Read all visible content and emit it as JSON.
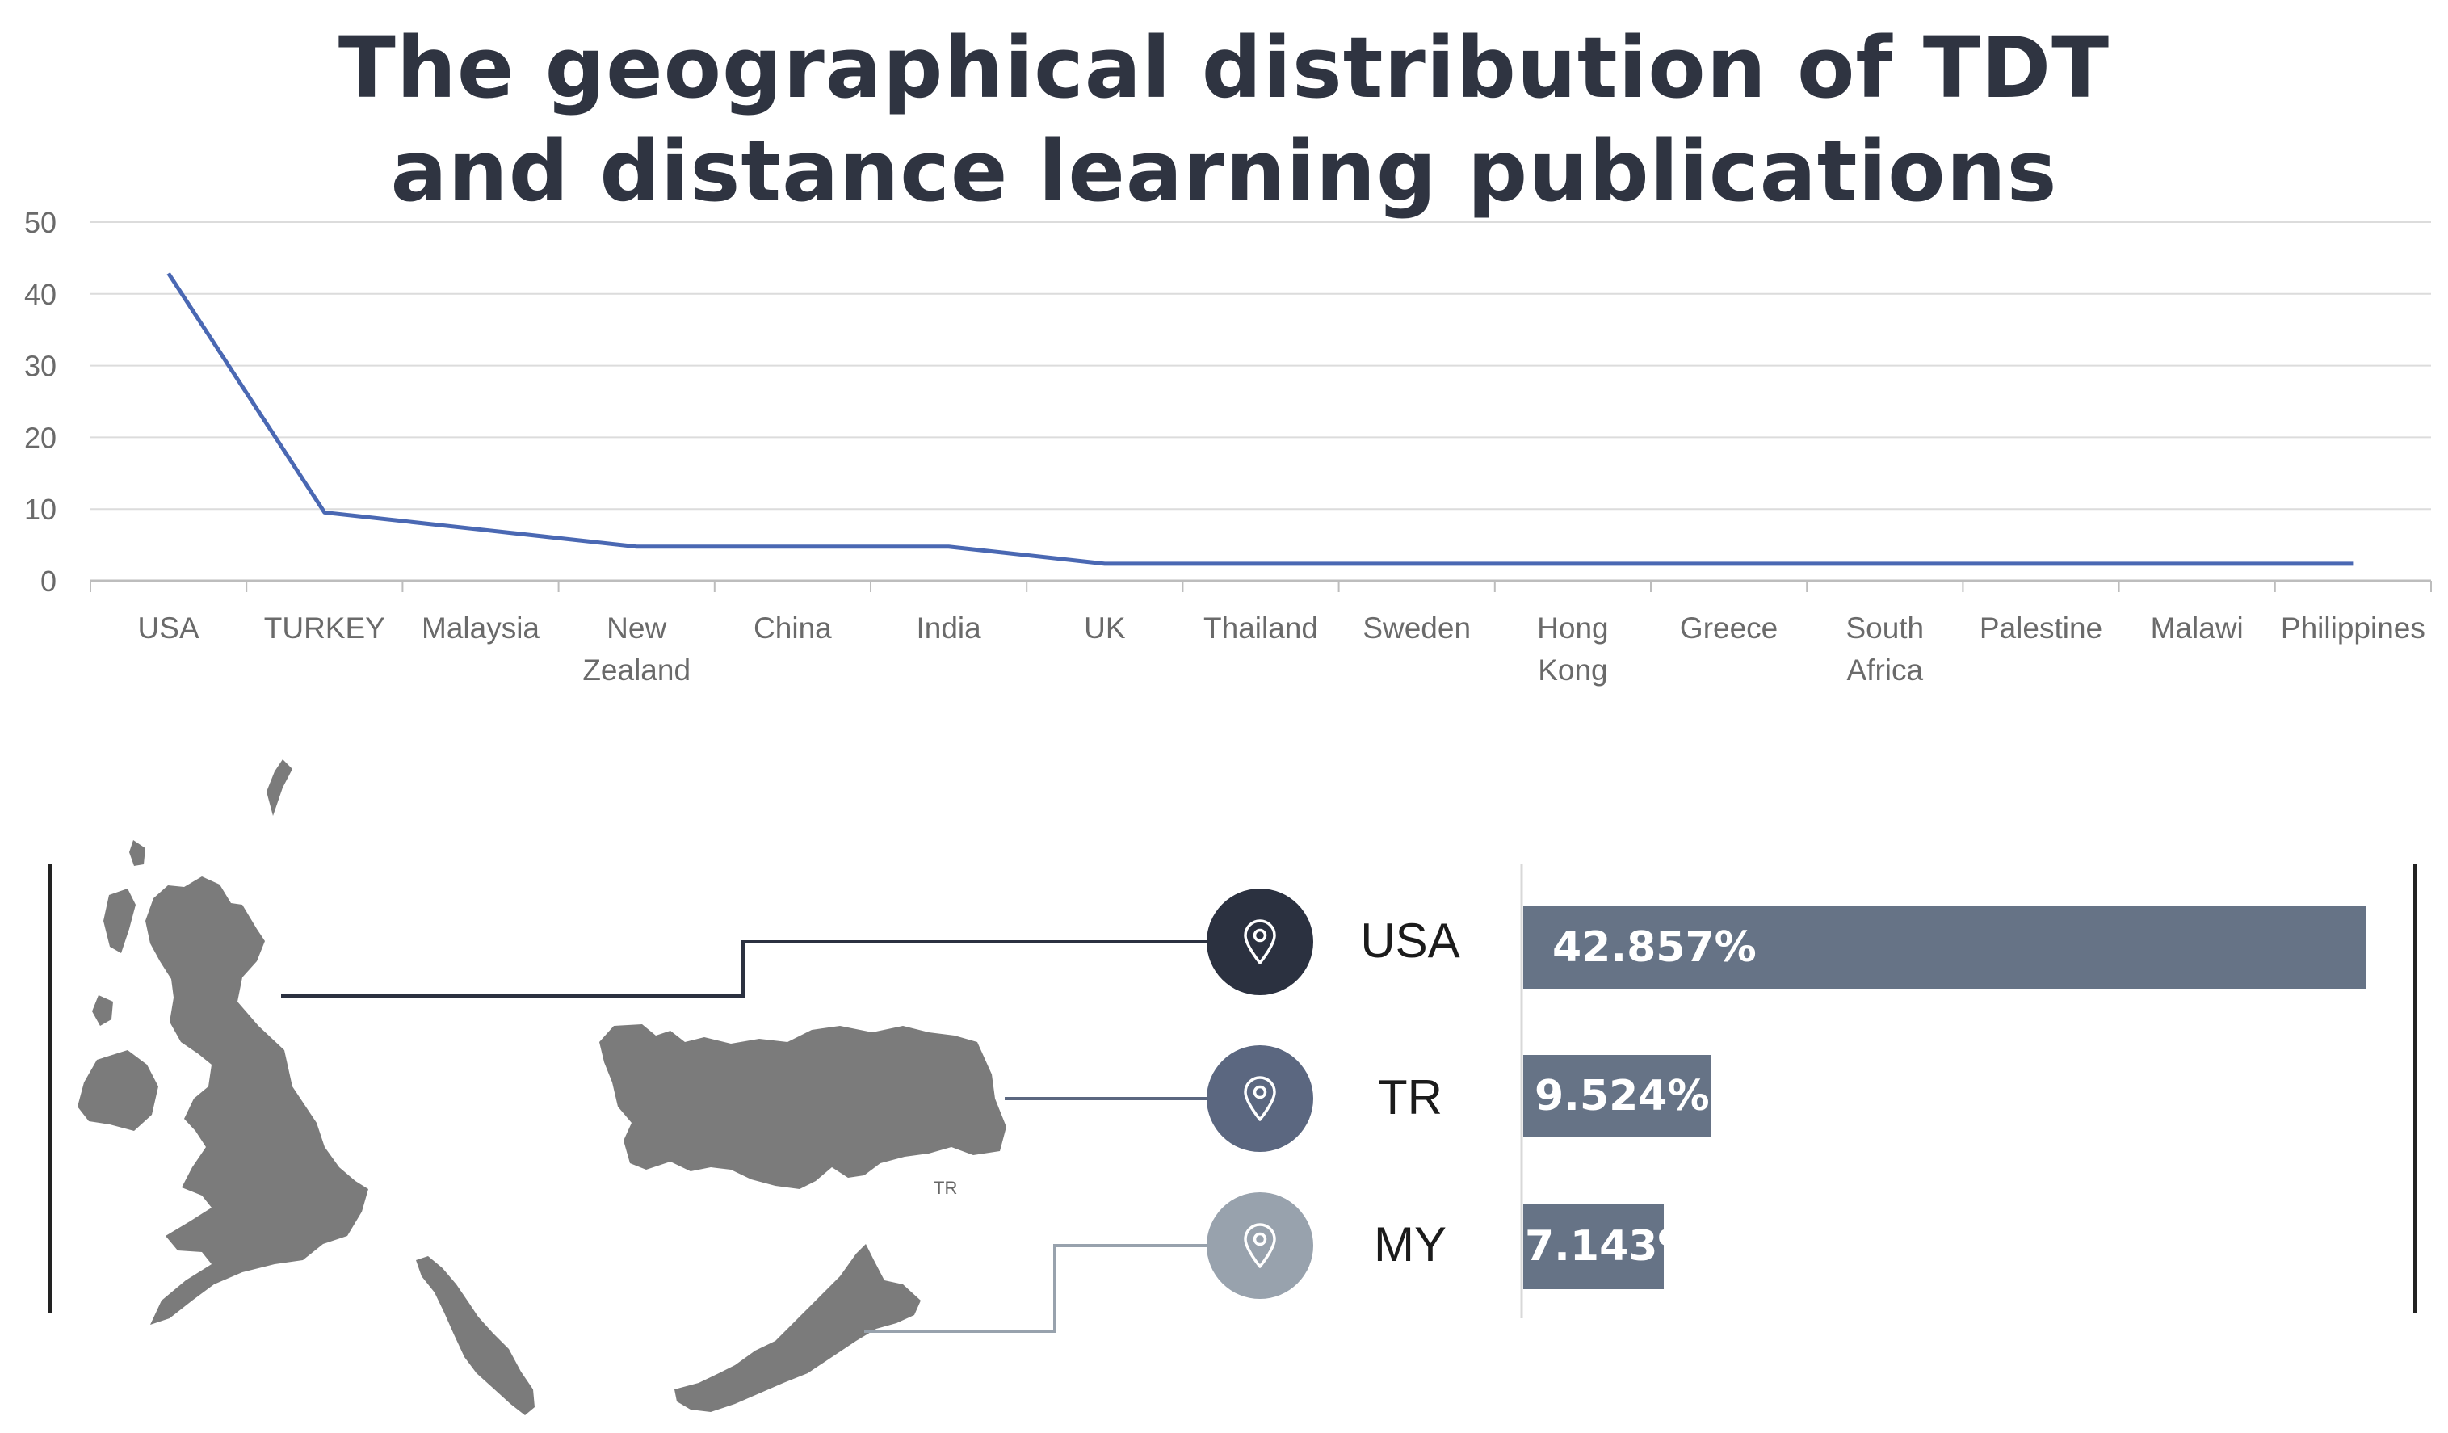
{
  "title_lines": [
    "The geographical distribution of TDT",
    "and distance learning publications"
  ],
  "chart_data": {
    "type": "line",
    "title": "The geographical distribution of TDT and distance learning publications",
    "categories": [
      [
        "USA"
      ],
      [
        "TURKEY"
      ],
      [
        "Malaysia"
      ],
      [
        "New",
        "Zealand"
      ],
      [
        "China"
      ],
      [
        "India"
      ],
      [
        "UK"
      ],
      [
        "Thailand"
      ],
      [
        "Sweden"
      ],
      [
        "Hong",
        "Kong"
      ],
      [
        "Greece"
      ],
      [
        "South",
        "Africa"
      ],
      [
        "Palestine"
      ],
      [
        "Malawi"
      ],
      [
        "Philippines"
      ]
    ],
    "values": [
      42.857,
      9.524,
      7.143,
      4.762,
      4.762,
      4.762,
      2.381,
      2.381,
      2.381,
      2.381,
      2.381,
      2.381,
      2.381,
      2.381,
      2.381
    ],
    "yticks": [
      "0",
      "10",
      "20",
      "30",
      "40",
      "50"
    ],
    "ylim": [
      0,
      50
    ],
    "grid": true,
    "line_color": "#4a68b3"
  },
  "breakdown": {
    "type": "bar",
    "rows": [
      {
        "code": "USA",
        "value": 42.857,
        "label": "42.857%",
        "color": "#667386",
        "pin_color": "#2b3140"
      },
      {
        "code": "TR",
        "value": 9.524,
        "label": "9.524%",
        "color": "#667386",
        "pin_color": "#5b6780"
      },
      {
        "code": "MY",
        "value": 7.143,
        "label": "7.143%",
        "color": "#667386",
        "pin_color": "#98a2ad"
      }
    ],
    "map_labels": [
      "TR"
    ],
    "icon": "map-pin-icon"
  }
}
